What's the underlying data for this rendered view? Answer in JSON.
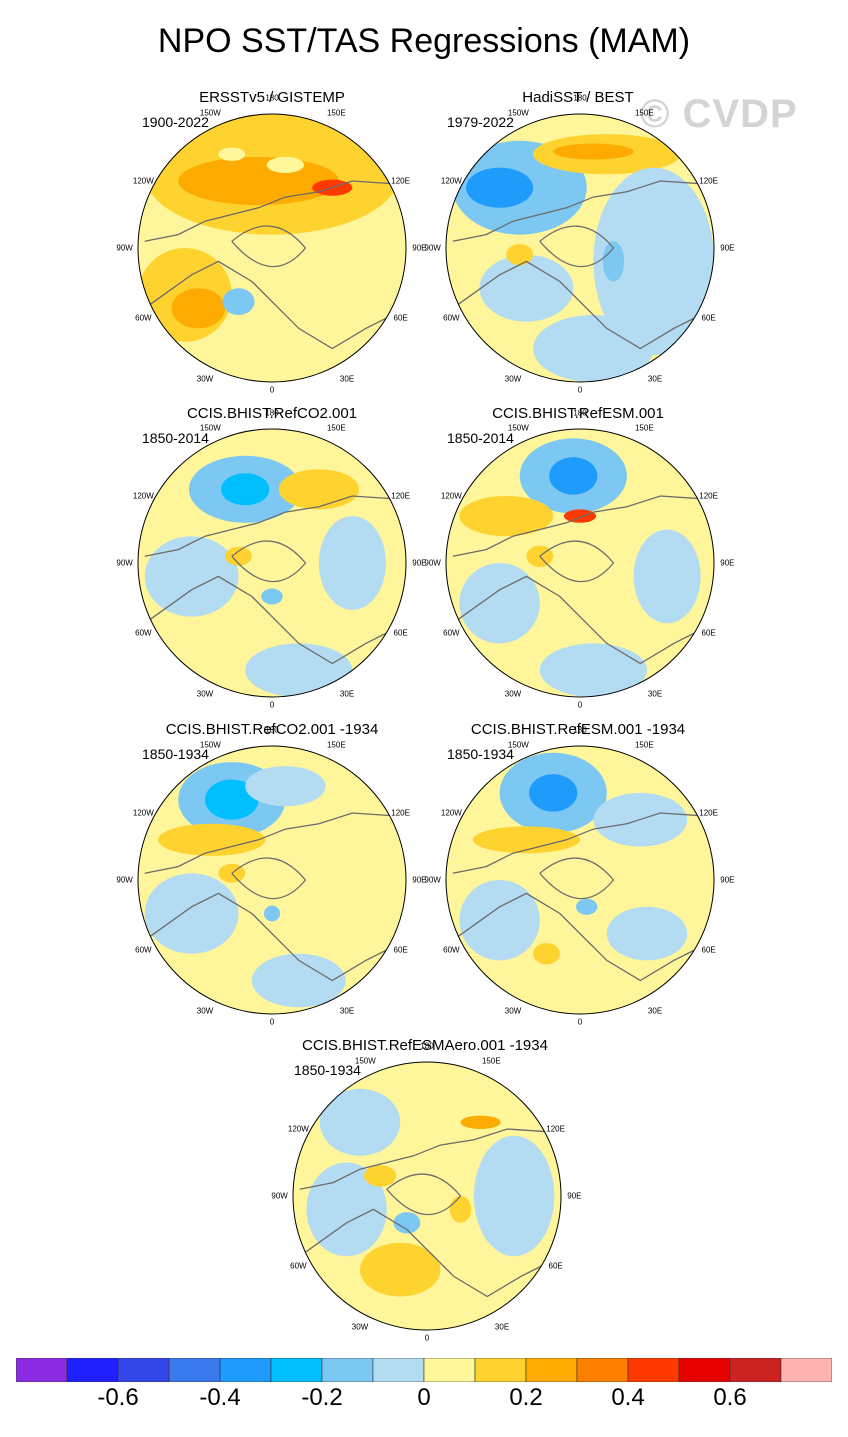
{
  "figure_title": "NPO SST/TAS Regressions (MAM)",
  "watermark": "© CVDP",
  "longitude_labels": {
    "top": "180",
    "top_left": "150W",
    "top_right": "150E",
    "upper_left": "120W",
    "upper_right": "120E",
    "left": "90W",
    "right": "90E",
    "lower_left": "60W",
    "lower_right": "60E",
    "bottom_left": "30W",
    "bottom_right": "30E",
    "bottom": "0"
  },
  "panels": [
    {
      "title": "ERSSTv5 / GISTEMP",
      "period": "1900-2022"
    },
    {
      "title": "HadiSST / BEST",
      "period": "1979-2022"
    },
    {
      "title": "CCIS.BHIST.RefCO2.001",
      "period": "1850-2014"
    },
    {
      "title": "CCIS.BHIST.RefESM.001",
      "period": "1850-2014"
    },
    {
      "title": "CCIS.BHIST.RefCO2.001 -1934",
      "period": "1850-1934"
    },
    {
      "title": "CCIS.BHIST.RefESM.001 -1934",
      "period": "1850-1934"
    },
    {
      "title": "CCIS.BHIST.RefESMAero.001 -1934",
      "period": "1850-1934"
    }
  ],
  "colorbar": {
    "colors": [
      "#8a2be2",
      "#1f1fff",
      "#3347e8",
      "#3a78ee",
      "#1f9bfb",
      "#00bfff",
      "#7cc8f2",
      "#b3dcf2",
      "#fff89a",
      "#fed330",
      "#fdab00",
      "#ff7f00",
      "#ff3a00",
      "#e60000",
      "#cc2222",
      "#ffb3b3"
    ],
    "tick_labels": [
      "-0.6",
      "-0.4",
      "-0.2",
      "0",
      "0.2",
      "0.4",
      "0.6"
    ]
  }
}
